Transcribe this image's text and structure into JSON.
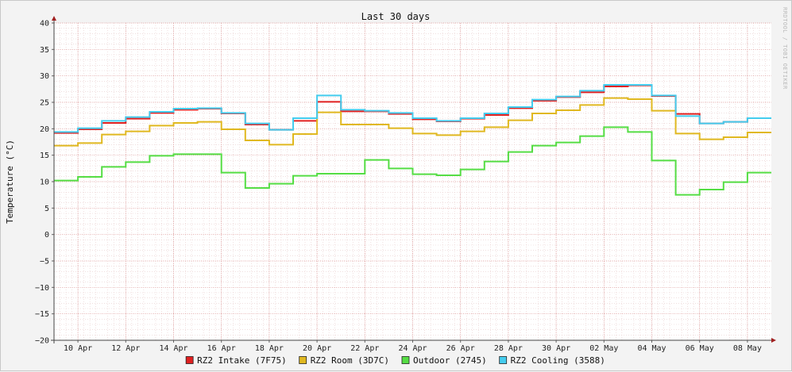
{
  "chart_data": {
    "type": "line",
    "step": true,
    "title": "Last 30 days",
    "ylabel": "Temperature (°C)",
    "xlabel": "",
    "watermark": "RRDTOOL / TOBI OETIKER",
    "ylim": [
      -20,
      40
    ],
    "yticks": [
      -20,
      -15,
      -10,
      -5,
      0,
      5,
      10,
      15,
      20,
      25,
      30,
      35,
      40
    ],
    "ytick_labels": [
      "−20",
      "−15",
      "−10",
      "−5",
      "0",
      "5",
      "10",
      "15",
      "20",
      "25",
      "30",
      "35",
      "40"
    ],
    "xlim": [
      "2024-04-09",
      "2024-05-09"
    ],
    "x_tick_labels": [
      "10 Apr",
      "12 Apr",
      "14 Apr",
      "16 Apr",
      "18 Apr",
      "20 Apr",
      "22 Apr",
      "24 Apr",
      "26 Apr",
      "28 Apr",
      "30 Apr",
      "02 May",
      "04 May",
      "06 May",
      "08 May"
    ],
    "grid": true,
    "legend_position": "bottom",
    "x": [
      "2024-04-09",
      "2024-04-10",
      "2024-04-11",
      "2024-04-12",
      "2024-04-13",
      "2024-04-14",
      "2024-04-15",
      "2024-04-16",
      "2024-04-17",
      "2024-04-18",
      "2024-04-19",
      "2024-04-20",
      "2024-04-21",
      "2024-04-22",
      "2024-04-23",
      "2024-04-24",
      "2024-04-25",
      "2024-04-26",
      "2024-04-27",
      "2024-04-28",
      "2024-04-29",
      "2024-04-30",
      "2024-05-01",
      "2024-05-02",
      "2024-05-03",
      "2024-05-04",
      "2024-05-05",
      "2024-05-06",
      "2024-05-07",
      "2024-05-08"
    ],
    "series": [
      {
        "name": "RZ2 Intake (7F75)",
        "color": "#e02020",
        "values": [
          19.2,
          19.9,
          21.1,
          21.9,
          23.0,
          23.6,
          23.8,
          22.9,
          20.8,
          19.8,
          21.5,
          25.1,
          23.3,
          23.3,
          22.8,
          21.8,
          21.4,
          21.9,
          22.6,
          23.9,
          25.3,
          26.0,
          26.9,
          28.0,
          28.2,
          26.2,
          22.8,
          21.0,
          21.3,
          22.0
        ]
      },
      {
        "name": "RZ2 Room (3D7C)",
        "color": "#e0b820",
        "values": [
          16.8,
          17.3,
          18.9,
          19.5,
          20.6,
          21.1,
          21.3,
          19.9,
          17.8,
          17.0,
          19.0,
          23.1,
          20.8,
          20.8,
          20.1,
          19.1,
          18.8,
          19.5,
          20.3,
          21.6,
          22.9,
          23.5,
          24.5,
          25.8,
          25.6,
          23.4,
          19.1,
          18.0,
          18.4,
          19.3
        ]
      },
      {
        "name": "Outdoor (2745)",
        "color": "#55dd44",
        "values": [
          10.2,
          10.9,
          12.8,
          13.7,
          14.9,
          15.2,
          15.2,
          11.7,
          8.8,
          9.6,
          11.1,
          11.5,
          11.5,
          14.1,
          12.5,
          11.4,
          11.2,
          12.3,
          13.8,
          15.6,
          16.8,
          17.4,
          18.6,
          20.3,
          19.4,
          14.0,
          7.5,
          8.5,
          9.9,
          11.7
        ]
      },
      {
        "name": "RZ2 Cooling (3588)",
        "color": "#44ccee",
        "values": [
          19.4,
          20.1,
          21.5,
          22.2,
          23.2,
          23.8,
          23.9,
          23.0,
          21.0,
          19.8,
          22.0,
          26.3,
          23.6,
          23.4,
          23.0,
          22.0,
          21.5,
          22.0,
          22.9,
          24.1,
          25.5,
          26.1,
          27.2,
          28.3,
          28.3,
          26.3,
          22.4,
          21.0,
          21.3,
          22.0
        ]
      }
    ]
  }
}
